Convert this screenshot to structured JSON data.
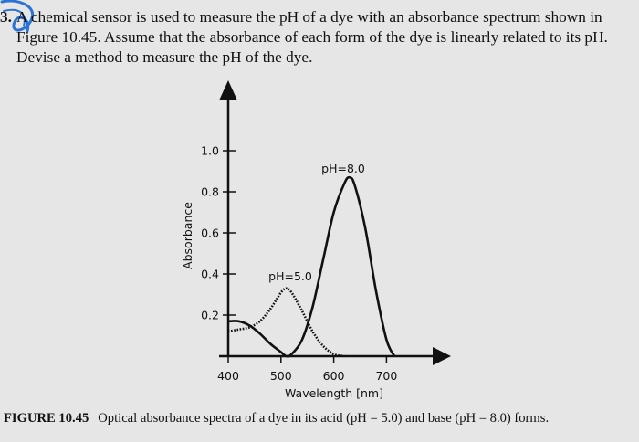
{
  "question": {
    "number": "3.",
    "text": "A chemical sensor is used to measure the pH of a dye with an absorbance spectrum shown in Figure 10.45. Assume that the absorbance of each form of the dye is linearly related to its pH. Devise a method to measure the pH of the dye."
  },
  "figure": {
    "caption_label": "FIGURE 10.45",
    "caption_text": "Optical absorbance spectra of a dye in its acid (pH = 5.0) and base (pH = 8.0) forms."
  },
  "chart_data": {
    "type": "line",
    "xlabel": "Wavelength [nm]",
    "ylabel": "Absorbance",
    "xticks": [
      "400",
      "500",
      "600",
      "700"
    ],
    "yticks": [
      "0.2",
      "0.4",
      "0.6",
      "0.8",
      "1.0"
    ],
    "xlim": [
      400,
      780
    ],
    "ylim": [
      0,
      1.2
    ],
    "series": [
      {
        "name": "pH=5.0",
        "style": "dotted",
        "x": [
          400,
          420,
          440,
          460,
          480,
          500,
          510,
          520,
          540,
          560,
          580,
          600,
          620
        ],
        "y": [
          0.12,
          0.13,
          0.14,
          0.17,
          0.23,
          0.31,
          0.33,
          0.31,
          0.22,
          0.12,
          0.05,
          0.01,
          0.0
        ]
      },
      {
        "name": "pH=8.0",
        "style": "solid",
        "x": [
          400,
          420,
          440,
          460,
          480,
          500,
          510,
          520,
          540,
          560,
          580,
          600,
          620,
          630,
          640,
          660,
          680,
          700,
          715
        ],
        "y": [
          0.17,
          0.17,
          0.15,
          0.11,
          0.06,
          0.02,
          0.0,
          0.01,
          0.08,
          0.24,
          0.47,
          0.7,
          0.84,
          0.87,
          0.83,
          0.62,
          0.32,
          0.08,
          0.0
        ]
      }
    ]
  }
}
